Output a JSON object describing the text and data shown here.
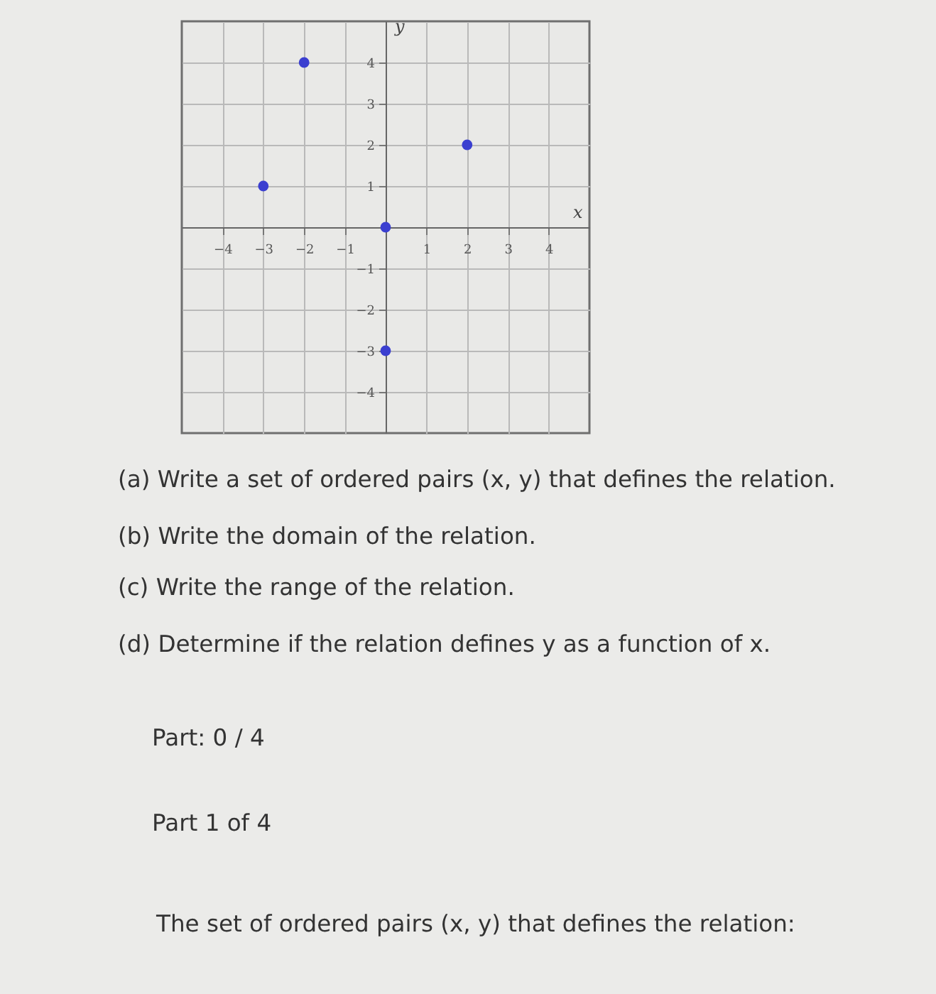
{
  "chart_data": {
    "type": "scatter",
    "x": [
      -3,
      -2,
      0,
      0,
      2
    ],
    "values": [
      1,
      4,
      0,
      -3,
      2
    ],
    "color": "#3b3fd0",
    "marker": "circle",
    "xlabel": "x",
    "ylabel": "y",
    "xlim": [
      -5,
      5
    ],
    "ylim": [
      -5,
      5
    ],
    "xticks": [
      -4,
      -3,
      -2,
      -1,
      1,
      2,
      3,
      4
    ],
    "yticks": [
      -4,
      -3,
      -2,
      -1,
      1,
      2,
      3,
      4
    ],
    "grid": true,
    "annotations": [
      "(a) Write a set of ordered pairs (x, y) that defines the relation.",
      "(b) Write the domain of the relation.",
      "(c) Write the range of the relation.",
      "(d) Determine if the relation defines y as a function of x.",
      "Part: 0 / 4",
      "Part 1 of 4",
      "The set of ordered pairs (x, y) that defines the relation:"
    ]
  }
}
